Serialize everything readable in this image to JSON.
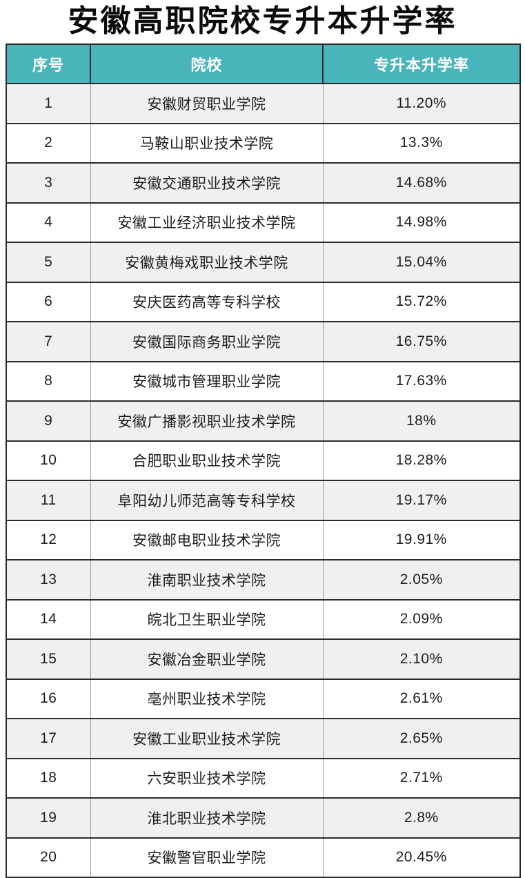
{
  "title": "安徽高职院校专升本升学率",
  "table": {
    "columns": [
      "序号",
      "院校",
      "专升本升学率"
    ],
    "rows": [
      {
        "index": "1",
        "school": "安徽财贸职业学院",
        "rate": "11.20%"
      },
      {
        "index": "2",
        "school": "马鞍山职业技术学院",
        "rate": "13.3%"
      },
      {
        "index": "3",
        "school": "安徽交通职业技术学院",
        "rate": "14.68%"
      },
      {
        "index": "4",
        "school": "安徽工业经济职业技术学院",
        "rate": "14.98%"
      },
      {
        "index": "5",
        "school": "安徽黄梅戏职业技术学院",
        "rate": "15.04%"
      },
      {
        "index": "6",
        "school": "安庆医药高等专科学校",
        "rate": "15.72%"
      },
      {
        "index": "7",
        "school": "安徽国际商务职业学院",
        "rate": "16.75%"
      },
      {
        "index": "8",
        "school": "安徽城市管理职业学院",
        "rate": "17.63%"
      },
      {
        "index": "9",
        "school": "安徽广播影视职业技术学院",
        "rate": "18%"
      },
      {
        "index": "10",
        "school": "合肥职业职业技术学院",
        "rate": "18.28%"
      },
      {
        "index": "11",
        "school": "阜阳幼儿师范高等专科学校",
        "rate": "19.17%"
      },
      {
        "index": "12",
        "school": "安徽邮电职业技术学院",
        "rate": "19.91%"
      },
      {
        "index": "13",
        "school": "淮南职业技术学院",
        "rate": "2.05%"
      },
      {
        "index": "14",
        "school": "皖北卫生职业学院",
        "rate": "2.09%"
      },
      {
        "index": "15",
        "school": "安徽冶金职业学院",
        "rate": "2.10%"
      },
      {
        "index": "16",
        "school": "亳州职业技术学院",
        "rate": "2.61%"
      },
      {
        "index": "17",
        "school": "安徽工业职业技术学院",
        "rate": "2.65%"
      },
      {
        "index": "18",
        "school": "六安职业技术学院",
        "rate": "2.71%"
      },
      {
        "index": "19",
        "school": "淮北职业技术学院",
        "rate": "2.8%"
      },
      {
        "index": "20",
        "school": "安徽警官职业学院",
        "rate": "20.45%"
      }
    ]
  },
  "colors": {
    "header_bg": "#4ab4bb",
    "header_text": "#ffffff",
    "row_odd_bg": "#f0f0f0",
    "row_even_bg": "#ffffff",
    "row_border": "#2b2b2b",
    "column_divider": "#9a9a9a",
    "body_text": "#1c1c1c",
    "title_text": "#0a0a0a"
  },
  "chart_data": {
    "type": "table",
    "title": "安徽高职院校专升本升学率",
    "columns": [
      "序号",
      "院校",
      "专升本升学率"
    ],
    "categories": [
      "安徽财贸职业学院",
      "马鞍山职业技术学院",
      "安徽交通职业技术学院",
      "安徽工业经济职业技术学院",
      "安徽黄梅戏职业技术学院",
      "安庆医药高等专科学校",
      "安徽国际商务职业学院",
      "安徽城市管理职业学院",
      "安徽广播影视职业技术学院",
      "合肥职业职业技术学院",
      "阜阳幼儿师范高等专科学校",
      "安徽邮电职业技术学院",
      "淮南职业技术学院",
      "皖北卫生职业学院",
      "安徽冶金职业学院",
      "亳州职业技术学院",
      "安徽工业职业技术学院",
      "六安职业技术学院",
      "淮北职业技术学院",
      "安徽警官职业学院"
    ],
    "values_percent": [
      11.2,
      13.3,
      14.68,
      14.98,
      15.04,
      15.72,
      16.75,
      17.63,
      18,
      18.28,
      19.17,
      19.91,
      2.05,
      2.09,
      2.1,
      2.61,
      2.65,
      2.71,
      2.8,
      20.45
    ]
  }
}
